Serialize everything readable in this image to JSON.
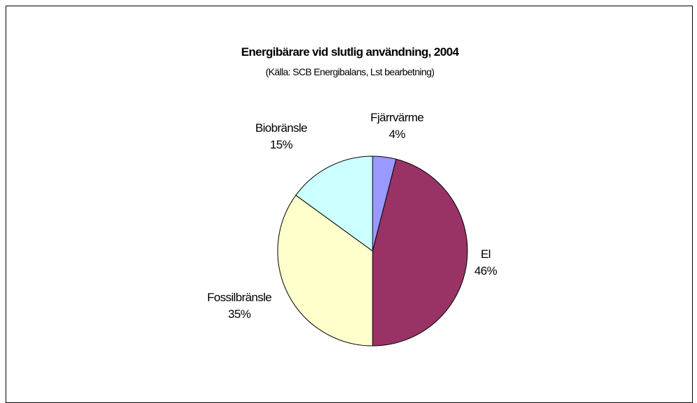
{
  "chart_data": {
    "type": "pie",
    "title": "Energibärare vid slutlig användning, 2004",
    "subtitle": "(Källa: SCB Energibalans, Lst bearbetning)",
    "slices": [
      {
        "name": "Fjärrvärme",
        "value": 4,
        "label": "4%",
        "color": "#9999FF"
      },
      {
        "name": "El",
        "value": 46,
        "label": "46%",
        "color": "#993366"
      },
      {
        "name": "Fossilbränsle",
        "value": 35,
        "label": "35%",
        "color": "#FFFFCC"
      },
      {
        "name": "Biobränsle",
        "value": 15,
        "label": "15%",
        "color": "#CCFFFF"
      }
    ],
    "start_angle_deg": 0,
    "direction": "clockwise",
    "legend": "none"
  }
}
